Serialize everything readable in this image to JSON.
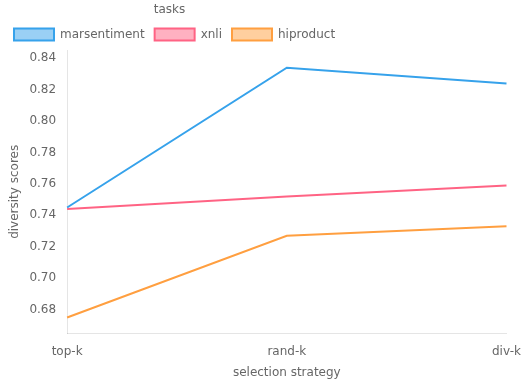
{
  "chart_data": {
    "type": "line",
    "categories": [
      "top-k",
      "rand-k",
      "div-k"
    ],
    "series": [
      {
        "name": "marsentiment",
        "values": [
          0.745,
          0.834,
          0.824
        ]
      },
      {
        "name": "xnli",
        "values": [
          0.744,
          0.752,
          0.759
        ]
      },
      {
        "name": "hiproduct",
        "values": [
          0.675,
          0.727,
          0.733
        ]
      }
    ],
    "x_label": "selection strategy",
    "y_label": "diversity scores",
    "legend_title": "tasks",
    "ylim": [
      0.665,
      0.845
    ],
    "yticks": [
      0.68,
      {
        "value": 0.7,
        "label": "0.70"
      },
      0.72,
      0.74,
      0.76,
      0.78,
      {
        "value": 0.8,
        "label": "0.80"
      },
      0.82,
      0.84
    ],
    "grid": false,
    "legend": "upper left"
  }
}
